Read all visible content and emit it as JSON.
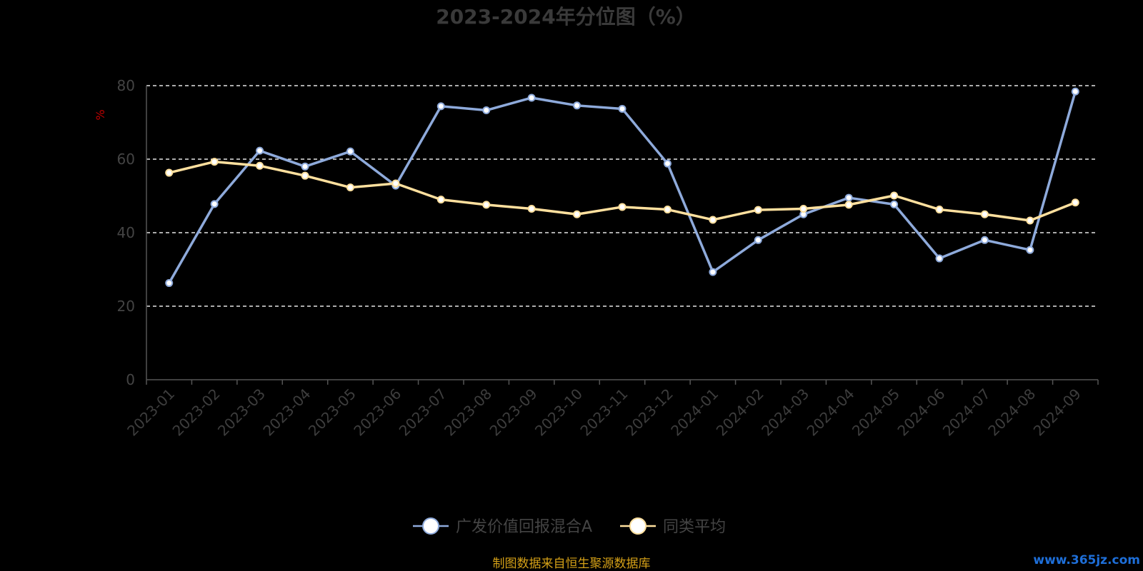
{
  "chart_data": {
    "type": "line",
    "title": "2023-2024年分位图（%）",
    "ylabel": "%",
    "xlabel": "",
    "ylim": [
      0,
      80
    ],
    "yticks": [
      0,
      20,
      40,
      60,
      80
    ],
    "grid": true,
    "legend_position": "bottom-center",
    "categories": [
      "2023-01",
      "2023-02",
      "2023-03",
      "2023-04",
      "2023-05",
      "2023-06",
      "2023-07",
      "2023-08",
      "2023-09",
      "2023-10",
      "2023-11",
      "2023-12",
      "2024-01",
      "2024-02",
      "2024-03",
      "2024-04",
      "2024-05",
      "2024-06",
      "2024-07",
      "2024-08",
      "2024-09"
    ],
    "series": [
      {
        "name": "广发价值回报混合A",
        "color": "#8eaadb",
        "values": [
          26.3,
          47.8,
          62.3,
          58.0,
          62.1,
          52.8,
          74.4,
          73.3,
          76.7,
          74.6,
          73.7,
          58.8,
          29.3,
          38.0,
          45.0,
          49.5,
          47.7,
          33.0,
          38.0,
          35.3,
          78.4
        ]
      },
      {
        "name": "同类平均",
        "color": "#ffe09e",
        "values": [
          56.3,
          59.3,
          58.2,
          55.5,
          52.3,
          53.4,
          49.0,
          47.6,
          46.5,
          45.0,
          47.0,
          46.3,
          43.5,
          46.2,
          46.5,
          47.6,
          50.1,
          46.3,
          45.0,
          43.3,
          48.2
        ]
      }
    ],
    "source": "制图数据来自恒生聚源数据库",
    "watermark": "www.365jz.com"
  }
}
